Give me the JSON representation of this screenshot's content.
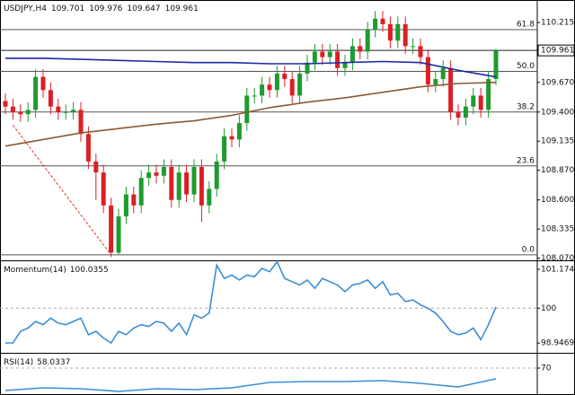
{
  "chart_data": [
    {
      "type": "candlestick",
      "symbol": "USDJPY,H4",
      "header_values": [
        109.701,
        109.976,
        109.647,
        109.961
      ],
      "open": [
        109.5,
        109.45,
        109.4,
        109.38,
        109.42,
        109.72,
        109.6,
        109.45,
        109.4,
        109.4,
        109.42,
        109.2,
        108.95,
        108.85,
        108.55,
        108.12,
        108.45,
        108.65,
        108.55,
        108.8,
        108.85,
        108.82,
        108.9,
        108.6,
        108.85,
        108.65,
        108.9,
        108.55,
        108.7,
        108.95,
        109.18,
        109.15,
        109.3,
        109.55,
        109.55,
        109.65,
        109.6,
        109.75,
        109.7,
        109.55,
        109.75,
        109.85,
        109.95,
        109.9,
        109.95,
        109.8,
        109.85,
        110.0,
        109.95,
        110.15,
        110.25,
        110.2,
        110.05,
        110.2,
        110.0,
        110.0,
        109.9,
        109.65,
        109.7,
        109.8,
        109.4,
        109.35,
        109.45,
        109.55,
        109.42,
        109.701
      ],
      "high": [
        109.57,
        109.52,
        109.47,
        109.49,
        109.79,
        109.79,
        109.67,
        109.52,
        109.47,
        109.49,
        109.49,
        109.27,
        109.02,
        108.92,
        108.62,
        108.52,
        108.72,
        108.72,
        108.87,
        108.92,
        108.92,
        108.97,
        108.97,
        108.92,
        108.92,
        108.97,
        108.97,
        108.77,
        109.02,
        109.25,
        109.25,
        109.37,
        109.62,
        109.62,
        109.72,
        109.72,
        109.82,
        109.82,
        109.77,
        109.82,
        109.92,
        110.02,
        110.02,
        110.02,
        110.02,
        109.92,
        110.07,
        110.07,
        110.22,
        110.32,
        110.32,
        110.27,
        110.27,
        110.27,
        110.07,
        110.07,
        109.97,
        109.77,
        109.87,
        109.87,
        109.47,
        109.52,
        109.62,
        109.62,
        109.77,
        109.976
      ],
      "low": [
        109.38,
        109.33,
        109.31,
        109.31,
        109.35,
        109.53,
        109.38,
        109.33,
        109.33,
        109.33,
        109.13,
        108.88,
        108.6,
        108.48,
        108.08,
        108.1,
        108.38,
        108.48,
        108.48,
        108.73,
        108.75,
        108.75,
        108.53,
        108.53,
        108.58,
        108.58,
        108.4,
        108.48,
        108.63,
        108.88,
        109.08,
        109.08,
        109.23,
        109.48,
        109.48,
        109.53,
        109.53,
        109.63,
        109.48,
        109.48,
        109.68,
        109.78,
        109.83,
        109.83,
        109.73,
        109.73,
        109.78,
        109.88,
        109.88,
        110.08,
        110.13,
        109.98,
        109.98,
        109.93,
        109.93,
        109.83,
        109.58,
        109.58,
        109.63,
        109.33,
        109.28,
        109.28,
        109.38,
        109.35,
        109.35,
        109.647
      ],
      "close": [
        109.45,
        109.4,
        109.38,
        109.42,
        109.72,
        109.6,
        109.45,
        109.4,
        109.4,
        109.42,
        109.2,
        108.95,
        108.85,
        108.55,
        108.12,
        108.45,
        108.65,
        108.55,
        108.8,
        108.85,
        108.82,
        108.9,
        108.6,
        108.85,
        108.65,
        108.9,
        108.55,
        108.7,
        108.95,
        109.18,
        109.15,
        109.3,
        109.55,
        109.55,
        109.65,
        109.6,
        109.75,
        109.7,
        109.55,
        109.75,
        109.85,
        109.95,
        109.9,
        109.95,
        109.8,
        109.85,
        110.0,
        109.95,
        110.15,
        110.25,
        110.2,
        110.05,
        110.2,
        110.0,
        110.0,
        109.9,
        109.65,
        109.7,
        109.8,
        109.4,
        109.35,
        109.45,
        109.55,
        109.42,
        109.7,
        109.961
      ],
      "up_color": "#1e9b2e",
      "down_color": "#dc1f26",
      "ylim": [
        108.05,
        110.42
      ],
      "yticks": [
        110.215,
        {
          "value": 109.67,
          "label": "109.670"
        },
        {
          "value": 109.4,
          "label": "109.400"
        },
        109.135,
        {
          "value": 108.87,
          "label": "108.870"
        },
        {
          "value": 108.6,
          "label": "108.600"
        },
        108.335,
        {
          "value": 108.07,
          "label": "108.070"
        }
      ],
      "last_price": 109.961,
      "fib_levels": [
        {
          "label": "61.8",
          "price": 110.15
        },
        {
          "label": "50.0",
          "price": 109.77
        },
        {
          "label": "38.2",
          "price": 109.4
        },
        {
          "label": "23.6",
          "price": 108.91
        },
        {
          "label": "0.0",
          "price": 108.1
        }
      ],
      "lines": [
        {
          "color": "#1c2aa6",
          "x": [
            0,
            5,
            10,
            15,
            20,
            25,
            30,
            35,
            40,
            45,
            50,
            55,
            60,
            65
          ],
          "values": [
            109.89,
            109.89,
            109.88,
            109.87,
            109.86,
            109.85,
            109.85,
            109.84,
            109.84,
            109.85,
            109.86,
            109.85,
            109.78,
            109.72
          ]
        },
        {
          "color": "#8a5a34",
          "x": [
            0,
            5,
            10,
            15,
            20,
            25,
            30,
            35,
            40,
            45,
            50,
            55,
            60,
            65
          ],
          "values": [
            109.09,
            109.15,
            109.21,
            109.25,
            109.29,
            109.32,
            109.37,
            109.44,
            109.49,
            109.53,
            109.58,
            109.63,
            109.66,
            109.67
          ]
        }
      ],
      "trendline": {
        "color": "#d9342b",
        "x": [
          1,
          14
        ],
        "values": [
          109.28,
          108.1
        ]
      }
    },
    {
      "type": "line",
      "title": "Momentum(14)",
      "last_value": 100.0355,
      "color": "#3a8fd6",
      "values": [
        98.95,
        98.95,
        99.3,
        99.4,
        99.6,
        99.5,
        99.7,
        99.55,
        99.5,
        99.6,
        99.7,
        99.2,
        99.3,
        99.1,
        98.95,
        99.3,
        99.2,
        99.4,
        99.5,
        99.45,
        99.6,
        99.55,
        99.3,
        99.55,
        99.2,
        99.8,
        99.7,
        99.85,
        101.3,
        100.9,
        101.0,
        100.85,
        101.0,
        100.95,
        101.2,
        101.1,
        101.4,
        100.9,
        100.8,
        100.7,
        100.85,
        100.6,
        100.9,
        100.8,
        100.7,
        100.5,
        100.7,
        100.75,
        100.85,
        100.6,
        100.8,
        100.4,
        100.45,
        100.2,
        100.25,
        100.1,
        100.0,
        99.85,
        99.6,
        99.3,
        99.2,
        99.25,
        99.4,
        99.05,
        99.5,
        100.0355
      ],
      "ylim": [
        98.68,
        101.39
      ],
      "yticks": [
        98.9469,
        100,
        101.1746
      ],
      "levels": [
        100
      ]
    },
    {
      "type": "line",
      "title": "RSI(14)",
      "last_value": 58.0337,
      "color": "#3a8fd6",
      "x": [
        0,
        5,
        10,
        15,
        20,
        25,
        30,
        35,
        40,
        45,
        50,
        55,
        60,
        65
      ],
      "values": [
        45,
        48,
        47,
        44,
        47,
        46,
        48,
        54,
        55,
        55,
        56,
        53,
        49,
        58.0337
      ],
      "ylim": [
        40,
        85
      ],
      "yticks": [
        70
      ],
      "levels": [
        70
      ]
    }
  ]
}
